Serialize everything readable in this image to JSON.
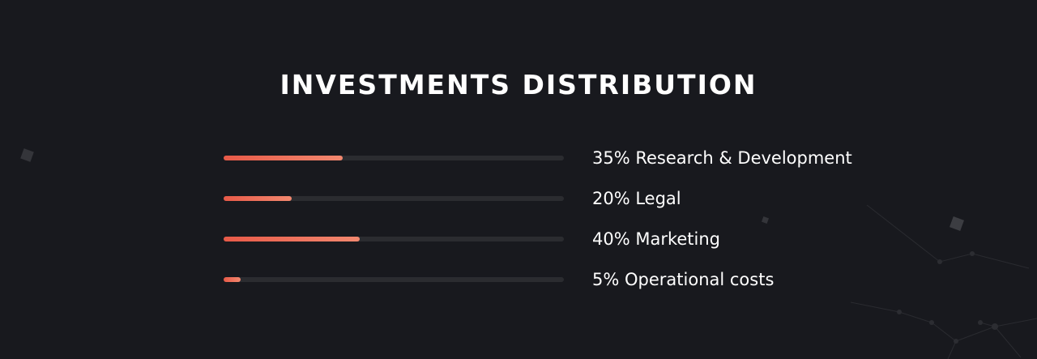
{
  "title": "INVESTMENTS DISTRIBUTION",
  "chart_data": {
    "type": "bar",
    "title": "INVESTMENTS DISTRIBUTION",
    "categories": [
      "Research & Development",
      "Legal",
      "Marketing",
      "Operational costs"
    ],
    "values": [
      35,
      20,
      40,
      5
    ],
    "labels": [
      "35% Research & Development",
      "20% Legal",
      "40% Marketing",
      "5% Operational costs"
    ],
    "ylim": [
      0,
      100
    ],
    "grid": false,
    "legend": "none"
  },
  "colors": {
    "background": "#18191e",
    "track": "#2b2c30",
    "fill_start": "#e85a48",
    "fill_end": "#f2886f",
    "text": "#ffffff"
  }
}
